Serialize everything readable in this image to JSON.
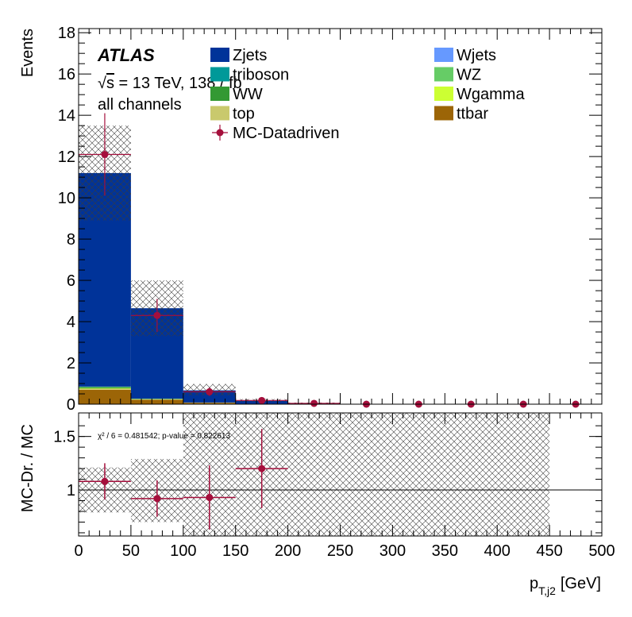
{
  "chart_data": {
    "type": "bar",
    "stacked": true,
    "x_bin_edges": [
      0,
      50,
      100,
      150,
      200,
      250,
      300,
      350,
      400,
      450,
      500
    ],
    "xlim": [
      0,
      500
    ],
    "x_ticks": [
      0,
      50,
      100,
      150,
      200,
      250,
      300,
      350,
      400,
      450,
      500
    ],
    "xlabel_main": "p",
    "xlabel_sub": "T,j2",
    "xlabel_unit": "[GeV]",
    "top_panel": {
      "ylabel": "Events",
      "ylim": [
        0,
        18.2
      ],
      "y_ticks": [
        0,
        2,
        4,
        6,
        8,
        10,
        12,
        14,
        16,
        18
      ],
      "annotations": {
        "experiment": "ATLAS",
        "energy_sqrt": "s",
        "energy_rest": " = 13 TeV, 138 / fb",
        "channel": "all channels"
      },
      "legend_placement": "top",
      "series": [
        {
          "name": "ttbar",
          "color": "#9c6507",
          "values": [
            0.7,
            0.22,
            0.07,
            0.02,
            0.0,
            0.0,
            0.0,
            0.0,
            0.0,
            0.0
          ]
        },
        {
          "name": "top",
          "color": "#c9c96d",
          "values": [
            0.05,
            0.02,
            0.01,
            0.0,
            0.0,
            0.0,
            0.0,
            0.0,
            0.0,
            0.0
          ]
        },
        {
          "name": "Wgamma",
          "color": "#ccff33",
          "values": [
            0.02,
            0.0,
            0.0,
            0.0,
            0.0,
            0.0,
            0.0,
            0.0,
            0.0,
            0.0
          ]
        },
        {
          "name": "WW",
          "color": "#339933",
          "values": [
            0.05,
            0.02,
            0.0,
            0.0,
            0.0,
            0.0,
            0.0,
            0.0,
            0.0,
            0.0
          ]
        },
        {
          "name": "WZ",
          "color": "#66cc66",
          "values": [
            0.03,
            0.01,
            0.0,
            0.0,
            0.0,
            0.0,
            0.0,
            0.0,
            0.0,
            0.0
          ]
        },
        {
          "name": "triboson",
          "color": "#009999",
          "values": [
            0.0,
            0.0,
            0.0,
            0.0,
            0.0,
            0.0,
            0.0,
            0.0,
            0.0,
            0.0
          ]
        },
        {
          "name": "Wjets",
          "color": "#6699ff",
          "values": [
            0.0,
            0.0,
            0.0,
            0.0,
            0.0,
            0.0,
            0.0,
            0.0,
            0.0,
            0.0
          ]
        },
        {
          "name": "Zjets",
          "color": "#003399",
          "values": [
            10.35,
            4.38,
            0.59,
            0.14,
            0.03,
            0.0,
            0.0,
            0.0,
            0.0,
            0.0
          ]
        }
      ],
      "legend": [
        {
          "name": "Zjets",
          "color": "#003399",
          "kind": "box"
        },
        {
          "name": "Wjets",
          "color": "#6699ff",
          "kind": "box"
        },
        {
          "name": "triboson",
          "color": "#009999",
          "kind": "box"
        },
        {
          "name": "WZ",
          "color": "#66cc66",
          "kind": "box"
        },
        {
          "name": "WW",
          "color": "#339933",
          "kind": "box"
        },
        {
          "name": "Wgamma",
          "color": "#ccff33",
          "kind": "box"
        },
        {
          "name": "top",
          "color": "#c9c96d",
          "kind": "box"
        },
        {
          "name": "ttbar",
          "color": "#9c6507",
          "kind": "box"
        },
        {
          "name": "MC-Datadriven",
          "color": "#a50f3c",
          "kind": "marker"
        }
      ],
      "uncertainty_band": {
        "low": [
          8.9,
          3.3,
          0.42,
          0.1,
          0.02,
          0.0,
          0.0,
          0.0,
          0.0,
          0.0
        ],
        "high": [
          13.5,
          6.0,
          0.98,
          0.25,
          0.08,
          0.0,
          0.0,
          0.0,
          0.0,
          0.0
        ]
      },
      "data_points": {
        "name": "MC-Datadriven",
        "color": "#a50f3c",
        "x": [
          25,
          75,
          125,
          175,
          225,
          275,
          325,
          375,
          425,
          475
        ],
        "y": [
          12.1,
          4.3,
          0.6,
          0.18,
          0.04,
          0.0,
          0.0,
          0.0,
          0.0,
          0.0
        ],
        "y_err": [
          2.0,
          0.8,
          0.2,
          0.08,
          0.03,
          0.0,
          0.0,
          0.0,
          0.0,
          0.0
        ],
        "x_err": [
          25,
          25,
          25,
          25,
          25,
          25,
          25,
          25,
          25,
          25
        ]
      }
    },
    "ratio_panel": {
      "ylabel": "MC-Dr. / MC",
      "ylim": [
        0.57,
        1.72
      ],
      "y_ticks": [
        1,
        1.5
      ],
      "y_tick_labels": [
        "1",
        "1.5"
      ],
      "reference_line": 1.0,
      "text": "χ² / 6 = 0.481542; p-value = 0.822613",
      "band": {
        "low": [
          0.79,
          0.7,
          0.42,
          0.42,
          0.42,
          0.42,
          0.42,
          0.42,
          0.42,
          null
        ],
        "high": [
          1.21,
          1.29,
          1.72,
          1.72,
          1.72,
          1.72,
          1.72,
          1.72,
          1.72,
          null
        ]
      },
      "points": {
        "x": [
          25,
          75,
          125,
          175
        ],
        "y": [
          1.08,
          0.92,
          0.93,
          1.2
        ],
        "y_err": [
          0.17,
          0.17,
          0.3,
          0.37
        ],
        "x_err": [
          25,
          25,
          25,
          25
        ]
      }
    }
  }
}
